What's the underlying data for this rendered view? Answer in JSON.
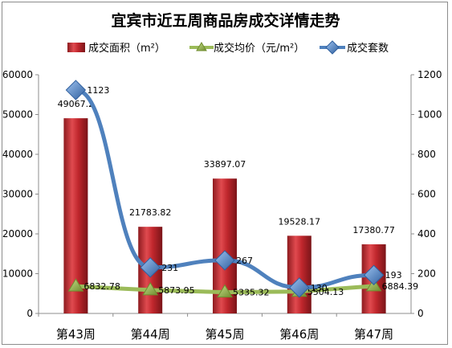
{
  "chart_data": {
    "type": "bar",
    "title": "宜宾市近五周商品房成交详情走势",
    "categories": [
      "第43周",
      "第44周",
      "第45周",
      "第46周",
      "第47周"
    ],
    "series": [
      {
        "name": "成交面积（m²）",
        "kind": "bar",
        "axis": "left",
        "values": [
          49067.2,
          21783.82,
          33897.07,
          19528.17,
          17380.77
        ],
        "labels": [
          "49067.2",
          "21783.82",
          "33897.07",
          "19528.17",
          "17380.77"
        ],
        "color": "#c0272d"
      },
      {
        "name": "成交均价（元/m²）",
        "kind": "line",
        "axis": "left",
        "marker": "triangle",
        "values": [
          6832.78,
          5873.95,
          5335.32,
          5504.13,
          6884.39
        ],
        "labels": [
          "6832.78",
          "5873.95",
          "5335.32",
          "5504.13",
          "6884.39"
        ],
        "color": "#9bbb59"
      },
      {
        "name": "成交套数",
        "kind": "line",
        "axis": "right",
        "marker": "diamond",
        "values": [
          1123,
          231,
          267,
          130,
          193
        ],
        "labels": [
          "1123",
          "231",
          "267",
          "130",
          "193"
        ],
        "color": "#4f81bd"
      }
    ],
    "y_left": {
      "min": 0,
      "max": 60000,
      "ticks": [
        "0",
        "10000",
        "20000",
        "30000",
        "40000",
        "50000",
        "60000"
      ]
    },
    "y_right": {
      "min": 0,
      "max": 1200,
      "ticks": [
        "0",
        "200",
        "400",
        "600",
        "800",
        "1000",
        "1200"
      ]
    },
    "legend_position": "top",
    "grid": false
  }
}
